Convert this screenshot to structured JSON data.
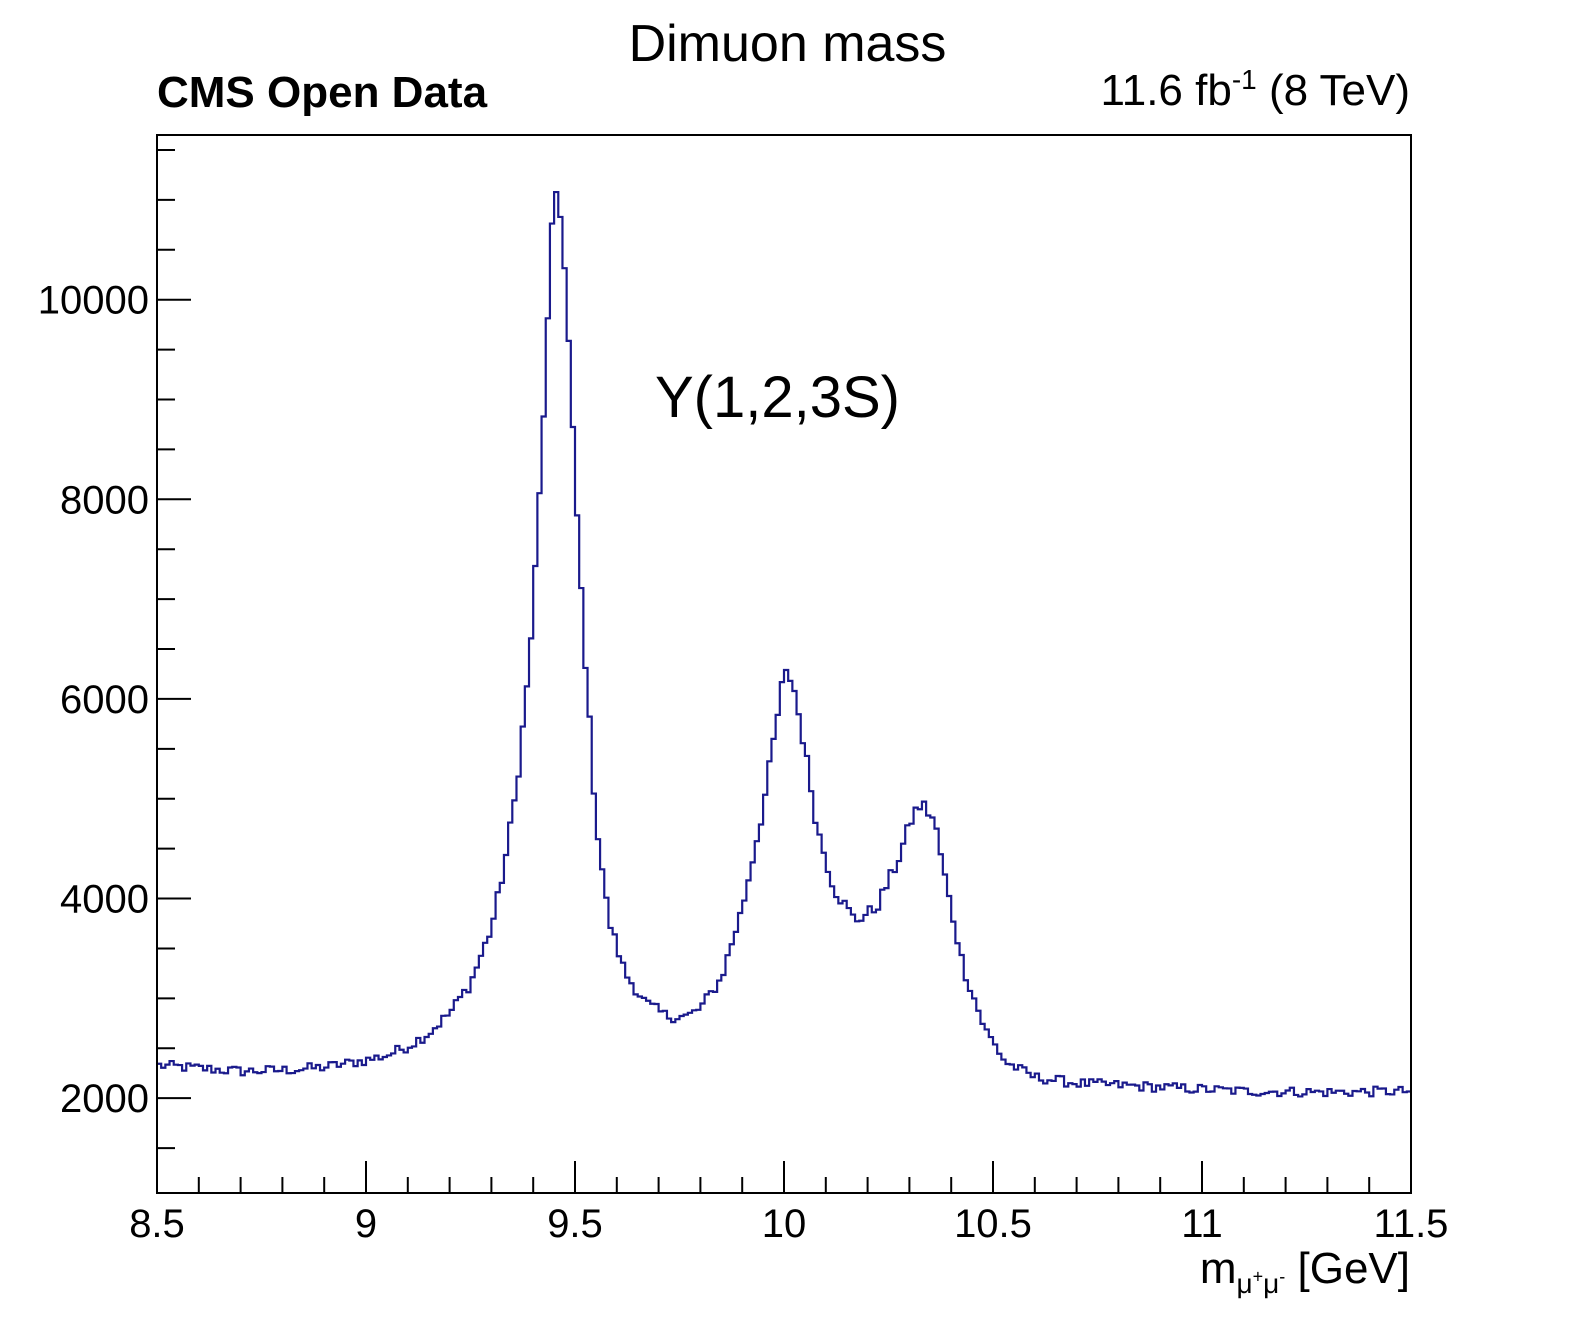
{
  "chart_data": {
    "type": "line",
    "style": "step-histogram",
    "title": "Dimuon mass",
    "experiment_label": "CMS Open Data",
    "luminosity": {
      "value": "11.6 fb",
      "exponent": "-1",
      "energy": "(8 TeV)"
    },
    "annotation": "Y(1,2,3S)",
    "xlabel": {
      "main": "m",
      "sub": "μ",
      "sup1": "+",
      "sub2": "μ",
      "sup2": "-",
      "unit": "[GeV]"
    },
    "xlim": [
      8.5,
      11.5
    ],
    "ylim": [
      1050,
      11650
    ],
    "xticks": [
      "8.5",
      "9",
      "9.5",
      "10",
      "10.5",
      "11",
      "11.5"
    ],
    "yticks": [
      "2000",
      "4000",
      "6000",
      "8000",
      "10000"
    ],
    "line_color": "#1a1a8c",
    "grid": false,
    "bins": 300,
    "series": [
      {
        "knots": [
          [
            8.5,
            2330
          ],
          [
            8.6,
            2300
          ],
          [
            8.7,
            2270
          ],
          [
            8.8,
            2280
          ],
          [
            8.9,
            2310
          ],
          [
            9.0,
            2380
          ],
          [
            9.05,
            2430
          ],
          [
            9.1,
            2520
          ],
          [
            9.15,
            2650
          ],
          [
            9.2,
            2850
          ],
          [
            9.25,
            3150
          ],
          [
            9.3,
            3700
          ],
          [
            9.33,
            4300
          ],
          [
            9.36,
            5100
          ],
          [
            9.39,
            6300
          ],
          [
            9.41,
            7600
          ],
          [
            9.43,
            9300
          ],
          [
            9.445,
            10650
          ],
          [
            9.455,
            11080
          ],
          [
            9.465,
            10900
          ],
          [
            9.48,
            10000
          ],
          [
            9.5,
            8200
          ],
          [
            9.52,
            6700
          ],
          [
            9.55,
            4800
          ],
          [
            9.58,
            3800
          ],
          [
            9.62,
            3250
          ],
          [
            9.67,
            2950
          ],
          [
            9.72,
            2820
          ],
          [
            9.77,
            2820
          ],
          [
            9.8,
            2900
          ],
          [
            9.85,
            3200
          ],
          [
            9.9,
            3900
          ],
          [
            9.95,
            4900
          ],
          [
            9.98,
            5700
          ],
          [
            10.0,
            6250
          ],
          [
            10.02,
            6200
          ],
          [
            10.05,
            5500
          ],
          [
            10.08,
            4700
          ],
          [
            10.12,
            4100
          ],
          [
            10.17,
            3780
          ],
          [
            10.22,
            3900
          ],
          [
            10.27,
            4350
          ],
          [
            10.31,
            4850
          ],
          [
            10.33,
            4950
          ],
          [
            10.36,
            4780
          ],
          [
            10.39,
            4100
          ],
          [
            10.43,
            3300
          ],
          [
            10.48,
            2700
          ],
          [
            10.53,
            2360
          ],
          [
            10.6,
            2210
          ],
          [
            10.7,
            2150
          ],
          [
            10.9,
            2110
          ],
          [
            11.1,
            2070
          ],
          [
            11.3,
            2060
          ],
          [
            11.5,
            2070
          ]
        ]
      }
    ]
  }
}
